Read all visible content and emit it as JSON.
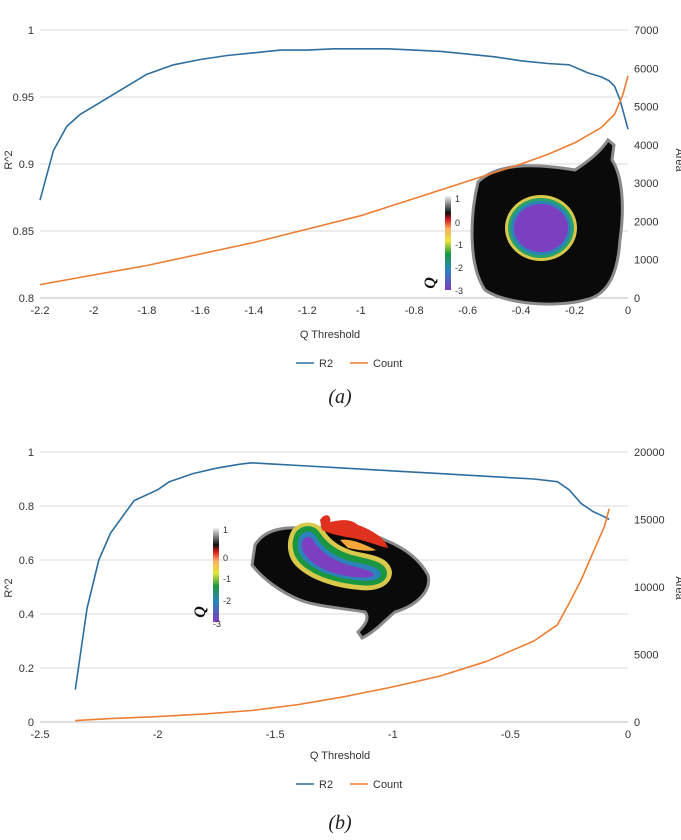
{
  "chart_data": [
    {
      "type": "line",
      "caption": "(a)",
      "xlabel": "Q Threshold",
      "ylabel": "R^2",
      "y2label": "Area",
      "xlim": [
        -2.2,
        0
      ],
      "ylim": [
        0.8,
        1
      ],
      "y2lim": [
        0,
        7000
      ],
      "x_ticks": [
        "-2.2",
        "-2",
        "-1.8",
        "-1.6",
        "-1.4",
        "-1.2",
        "-1",
        "-0.8",
        "-0.6",
        "-0.4",
        "-0.2",
        "0"
      ],
      "y_ticks": [
        "0.8",
        "0.85",
        "0.9",
        "0.95",
        "1"
      ],
      "y2_ticks": [
        "0",
        "1000",
        "2000",
        "3000",
        "4000",
        "5000",
        "6000",
        "7000"
      ],
      "grid": true,
      "legend_position": "bottom",
      "series": [
        {
          "name": "R2",
          "axis": "left",
          "color": "#2e6e9e",
          "x": [
            -2.2,
            -2.15,
            -2.1,
            -2.05,
            -2.0,
            -1.9,
            -1.8,
            -1.7,
            -1.6,
            -1.5,
            -1.4,
            -1.3,
            -1.2,
            -1.1,
            -1.0,
            -0.95,
            -0.9,
            -0.8,
            -0.7,
            -0.6,
            -0.5,
            -0.4,
            -0.3,
            -0.22,
            -0.15,
            -0.1,
            -0.07,
            -0.05,
            -0.03,
            0.0
          ],
          "y": [
            0.873,
            0.91,
            0.928,
            0.937,
            0.943,
            0.955,
            0.967,
            0.974,
            0.978,
            0.981,
            0.983,
            0.985,
            0.985,
            0.986,
            0.986,
            0.986,
            0.986,
            0.985,
            0.984,
            0.982,
            0.98,
            0.977,
            0.975,
            0.974,
            0.968,
            0.965,
            0.962,
            0.958,
            0.948,
            0.926
          ]
        },
        {
          "name": "Count",
          "axis": "right",
          "color": "#ed7d31",
          "x": [
            -2.2,
            -2.0,
            -1.8,
            -1.6,
            -1.4,
            -1.2,
            -1.0,
            -0.8,
            -0.6,
            -0.4,
            -0.3,
            -0.2,
            -0.1,
            -0.05,
            -0.02,
            0.0
          ],
          "y": [
            350,
            600,
            850,
            1150,
            1450,
            1800,
            2150,
            2600,
            3050,
            3500,
            3750,
            4050,
            4450,
            4800,
            5300,
            5800
          ]
        }
      ]
    },
    {
      "type": "line",
      "caption": "(b)",
      "xlabel": "Q Threshold",
      "ylabel": "R^2",
      "y2label": "Area",
      "xlim": [
        -2.5,
        0
      ],
      "ylim": [
        0,
        1
      ],
      "y2lim": [
        0,
        20000
      ],
      "x_ticks": [
        "-2.5",
        "-2",
        "-1.5",
        "-1",
        "-0.5",
        "0"
      ],
      "y_ticks": [
        "0",
        "0.2",
        "0.4",
        "0.6",
        "0.8",
        "1"
      ],
      "y2_ticks": [
        "0",
        "5000",
        "10000",
        "15000",
        "20000"
      ],
      "grid": true,
      "legend_position": "bottom",
      "series": [
        {
          "name": "R2",
          "axis": "left",
          "color": "#2e6e9e",
          "x": [
            -2.35,
            -2.3,
            -2.25,
            -2.2,
            -2.1,
            -2.0,
            -1.95,
            -1.85,
            -1.75,
            -1.65,
            -1.6,
            -1.5,
            -1.4,
            -1.2,
            -1.0,
            -0.8,
            -0.6,
            -0.4,
            -0.3,
            -0.25,
            -0.2,
            -0.15,
            -0.1,
            -0.08
          ],
          "y": [
            0.12,
            0.42,
            0.6,
            0.7,
            0.82,
            0.86,
            0.89,
            0.92,
            0.94,
            0.955,
            0.96,
            0.955,
            0.95,
            0.94,
            0.93,
            0.92,
            0.91,
            0.9,
            0.89,
            0.86,
            0.81,
            0.78,
            0.76,
            0.75
          ]
        },
        {
          "name": "Count",
          "axis": "right",
          "color": "#ed7d31",
          "x": [
            -2.35,
            -2.2,
            -2.0,
            -1.8,
            -1.6,
            -1.4,
            -1.2,
            -1.0,
            -0.8,
            -0.6,
            -0.4,
            -0.3,
            -0.25,
            -0.2,
            -0.15,
            -0.1,
            -0.08
          ],
          "y": [
            100,
            250,
            400,
            600,
            850,
            1300,
            1900,
            2600,
            3400,
            4500,
            6000,
            7200,
            8800,
            10500,
            12500,
            14500,
            15800
          ]
        }
      ]
    }
  ],
  "insets": [
    {
      "label": "Q",
      "ticks": [
        "1",
        "0",
        "-1",
        "-2",
        "-3"
      ]
    },
    {
      "label": "Q",
      "ticks": [
        "1",
        "0",
        "-1",
        "-2",
        "-3"
      ]
    }
  ]
}
